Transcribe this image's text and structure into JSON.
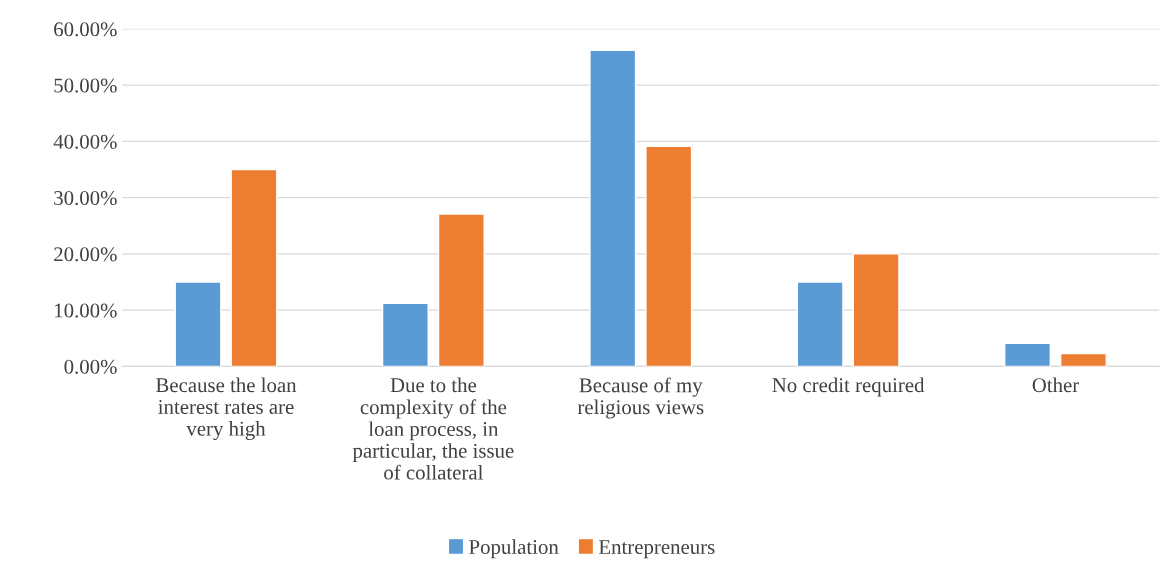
{
  "chart_data": {
    "type": "bar",
    "categories": [
      "Because the loan\ninterest rates are\nvery high",
      "Due to the\ncomplexity of the\nloan process, in\nparticular, the issue\nof collateral",
      "Because of my\nreligious views",
      "No credit required",
      "Other"
    ],
    "series": [
      {
        "name": "Population",
        "color": "#5b9bd5",
        "values": [
          15.0,
          11.2,
          56.2,
          15.0,
          4.1
        ]
      },
      {
        "name": "Entrepreneurs",
        "color": "#ed7d31",
        "values": [
          35.0,
          27.1,
          39.1,
          20.0,
          2.3
        ]
      }
    ],
    "ylim": [
      0,
      60
    ],
    "yticks": [
      {
        "value": 0,
        "label": "0.00%"
      },
      {
        "value": 10,
        "label": "10.00%"
      },
      {
        "value": 20,
        "label": "20.00%"
      },
      {
        "value": 30,
        "label": "30.00%"
      },
      {
        "value": 40,
        "label": "40.00%"
      },
      {
        "value": 50,
        "label": "50.00%"
      },
      {
        "value": 60,
        "label": "60.00%"
      }
    ],
    "grid": "y",
    "legend": "bottom"
  }
}
